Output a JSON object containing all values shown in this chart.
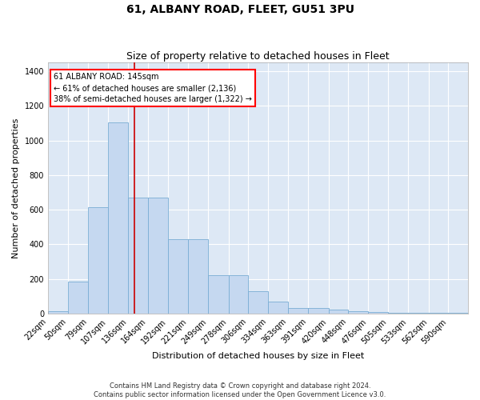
{
  "title": "61, ALBANY ROAD, FLEET, GU51 3PU",
  "subtitle": "Size of property relative to detached houses in Fleet",
  "xlabel": "Distribution of detached houses by size in Fleet",
  "ylabel": "Number of detached properties",
  "footer_line1": "Contains HM Land Registry data © Crown copyright and database right 2024.",
  "footer_line2": "Contains public sector information licensed under the Open Government Licence v3.0.",
  "annotation_title": "61 ALBANY ROAD: 145sqm",
  "annotation_line2": "← 61% of detached houses are smaller (2,136)",
  "annotation_line3": "38% of semi-detached houses are larger (1,322) →",
  "bar_color": "#c5d8f0",
  "bar_edge_color": "#7aadd4",
  "background_color": "#dde8f5",
  "grid_color": "#ffffff",
  "vline_color": "#cc0000",
  "property_size": 145,
  "categories": [
    "22sqm",
    "50sqm",
    "79sqm",
    "107sqm",
    "136sqm",
    "164sqm",
    "192sqm",
    "221sqm",
    "249sqm",
    "278sqm",
    "306sqm",
    "334sqm",
    "363sqm",
    "391sqm",
    "420sqm",
    "448sqm",
    "476sqm",
    "505sqm",
    "533sqm",
    "562sqm",
    "590sqm"
  ],
  "bin_edges": [
    22,
    50,
    79,
    107,
    136,
    164,
    192,
    221,
    249,
    278,
    306,
    334,
    363,
    391,
    420,
    448,
    476,
    505,
    533,
    562,
    590,
    618
  ],
  "values": [
    15,
    185,
    615,
    1105,
    670,
    670,
    430,
    430,
    220,
    220,
    128,
    70,
    30,
    30,
    22,
    14,
    10,
    5,
    4,
    4,
    6
  ],
  "ylim": [
    0,
    1450
  ],
  "yticks": [
    0,
    200,
    400,
    600,
    800,
    1000,
    1200,
    1400
  ],
  "fig_width": 6.0,
  "fig_height": 5.0,
  "fig_dpi": 100,
  "title_fontsize": 10,
  "subtitle_fontsize": 9,
  "ylabel_fontsize": 8,
  "xlabel_fontsize": 8,
  "tick_fontsize": 7,
  "footer_fontsize": 6,
  "annot_fontsize": 7
}
